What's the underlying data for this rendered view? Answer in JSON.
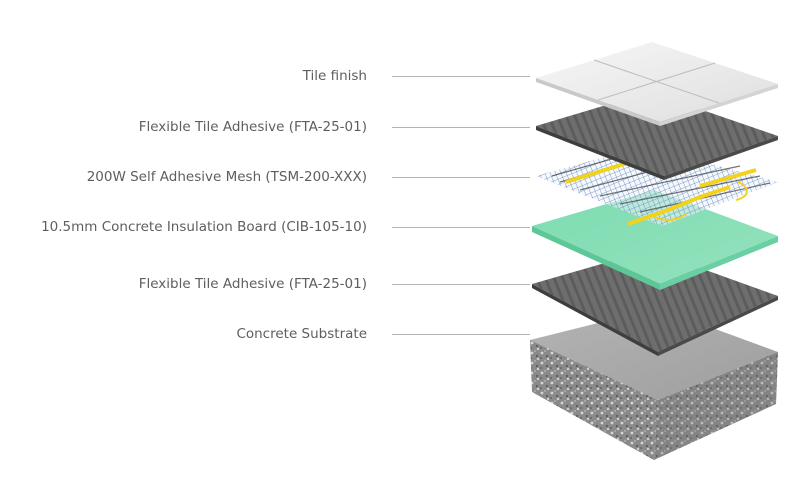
{
  "layers": [
    {
      "label": "Tile finish"
    },
    {
      "label": "Flexible Tile Adhesive (FTA-25-01)"
    },
    {
      "label": "200W Self Adhesive Mesh (TSM-200-XXX)"
    },
    {
      "label": "10.5mm Concrete Insulation Board (CIB-105-10)"
    },
    {
      "label": "Flexible Tile Adhesive (FTA-25-01)"
    },
    {
      "label": "Concrete Substrate"
    }
  ]
}
